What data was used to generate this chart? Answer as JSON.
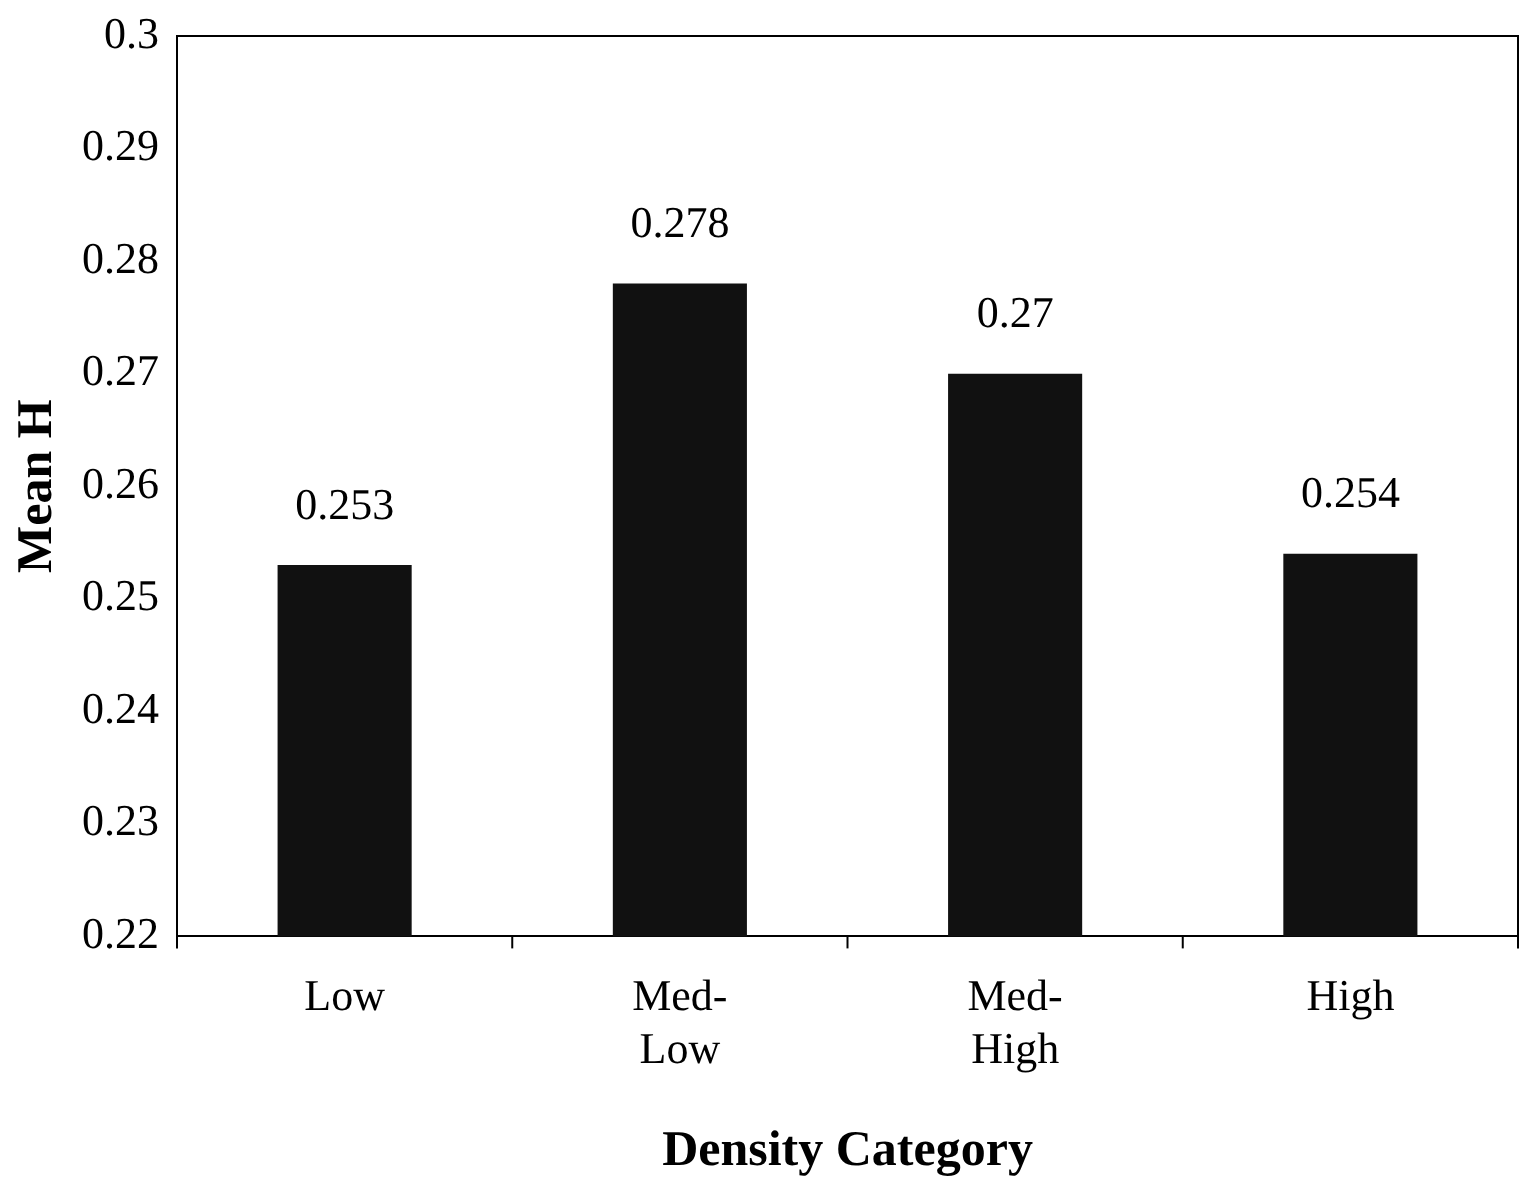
{
  "chart_data": {
    "type": "bar",
    "xlabel": "Density Category",
    "ylabel": "Mean H",
    "categories": [
      "Low",
      "Med-Low",
      "Med-High",
      "High"
    ],
    "values": [
      0.253,
      0.278,
      0.27,
      0.254
    ],
    "color": "#111111",
    "ylim": [
      0.22,
      0.3
    ],
    "yticks": [
      0.22,
      0.23,
      0.24,
      0.25,
      0.26,
      0.27,
      0.28,
      0.29,
      0.3
    ],
    "grid": false,
    "legend": false,
    "data_labels": true
  }
}
